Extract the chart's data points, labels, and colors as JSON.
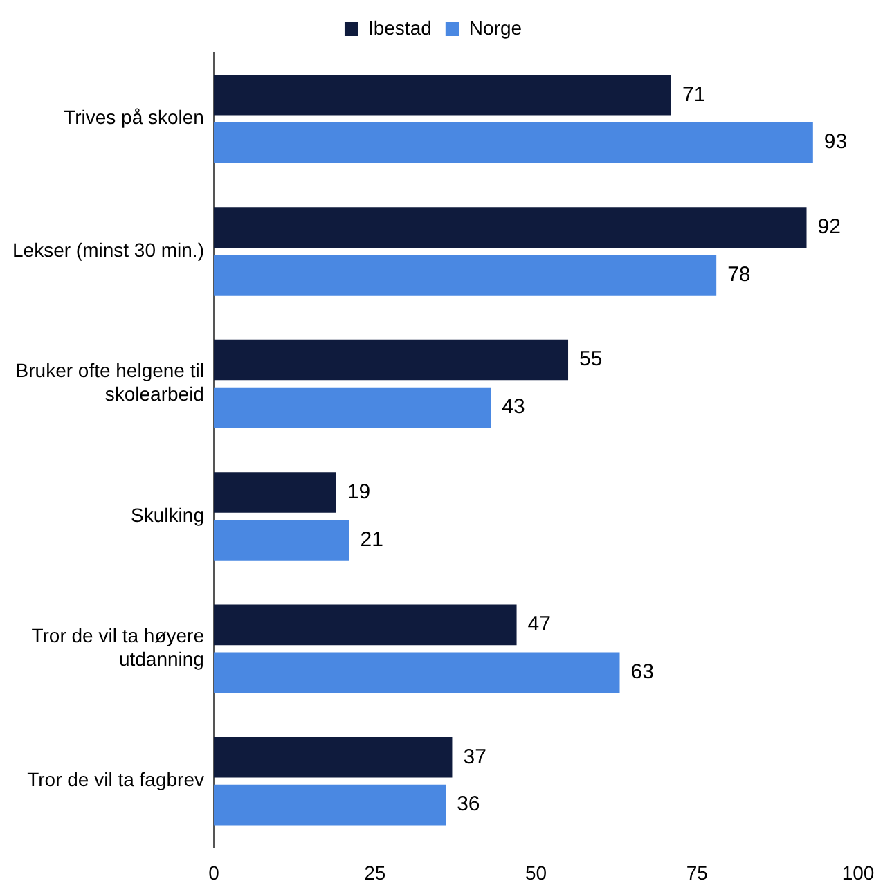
{
  "chart_data": {
    "type": "bar",
    "orientation": "horizontal",
    "categories": [
      "Trives på skolen",
      "Lekser (minst 30 min.)",
      "Bruker ofte helgene til skolearbeid",
      "Skulking",
      "Tror de vil ta høyere utdanning",
      "Tror de vil ta fagbrev"
    ],
    "series": [
      {
        "name": "Ibestad",
        "color": "#0f1b3d",
        "values": [
          71,
          92,
          55,
          19,
          47,
          37
        ]
      },
      {
        "name": "Norge",
        "color": "#4a88e2",
        "values": [
          93,
          78,
          43,
          21,
          63,
          36
        ]
      }
    ],
    "xlim": [
      0,
      100
    ],
    "xticks": [
      0,
      25,
      50,
      75,
      100
    ],
    "grid": false,
    "legend": "top",
    "data_labels": true
  }
}
